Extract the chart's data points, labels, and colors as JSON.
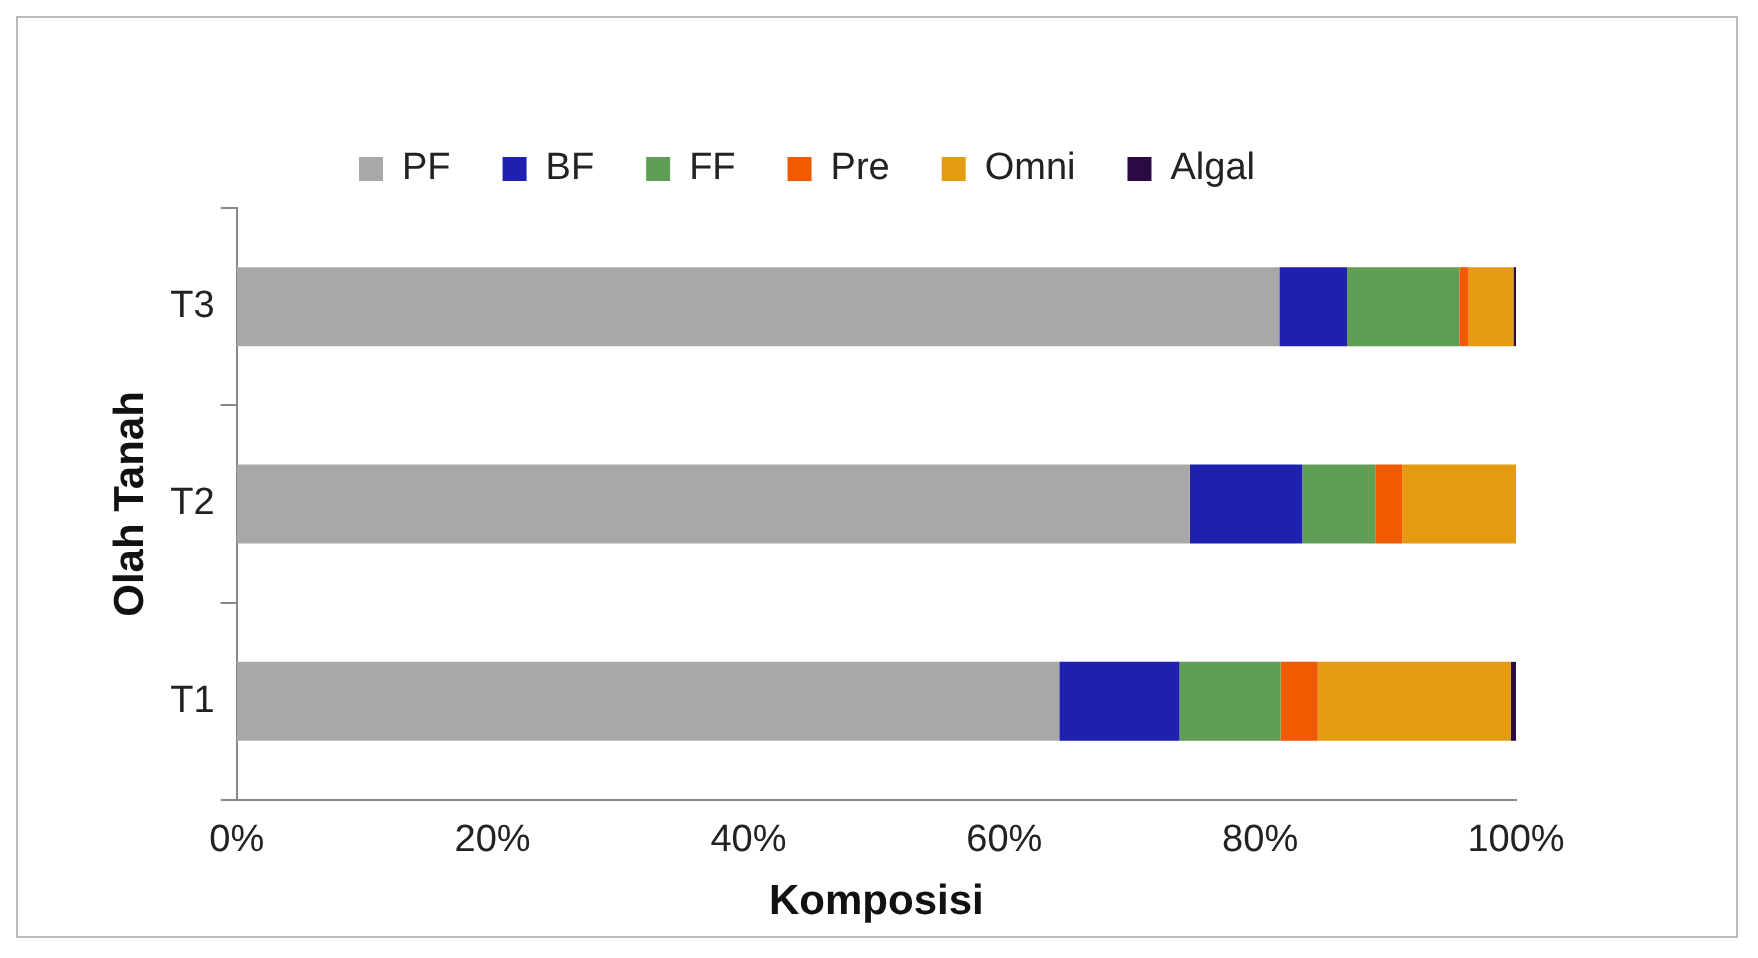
{
  "chart_data": {
    "type": "bar",
    "orientation": "horizontal",
    "stacked": true,
    "xlabel": "Komposisi",
    "ylabel": "Olah Tanah",
    "categories": [
      "T3",
      "T2",
      "T1"
    ],
    "series": [
      {
        "name": "PF",
        "color": "#a8a8a8",
        "values": [
          81.5,
          74.5,
          64.3
        ]
      },
      {
        "name": "BF",
        "color": "#2020b0",
        "values": [
          5.3,
          8.8,
          9.4
        ]
      },
      {
        "name": "FF",
        "color": "#5f9f55",
        "values": [
          8.8,
          5.7,
          7.9
        ]
      },
      {
        "name": "Pre",
        "color": "#f05a00",
        "values": [
          0.7,
          2.1,
          2.9
        ]
      },
      {
        "name": "Omni",
        "color": "#e39b12",
        "values": [
          3.5,
          8.9,
          15.1
        ]
      },
      {
        "name": "Algal",
        "color": "#2a0a45",
        "values": [
          0.2,
          0,
          0.4
        ]
      }
    ],
    "xlim": [
      0,
      100
    ],
    "xticks": [
      {
        "value": 0,
        "label": "0%"
      },
      {
        "value": 20,
        "label": "20%"
      },
      {
        "value": 40,
        "label": "40%"
      },
      {
        "value": 60,
        "label": "60%"
      },
      {
        "value": 80,
        "label": "80%"
      },
      {
        "value": 100,
        "label": "100%"
      }
    ],
    "grid": false,
    "legend": "top"
  }
}
